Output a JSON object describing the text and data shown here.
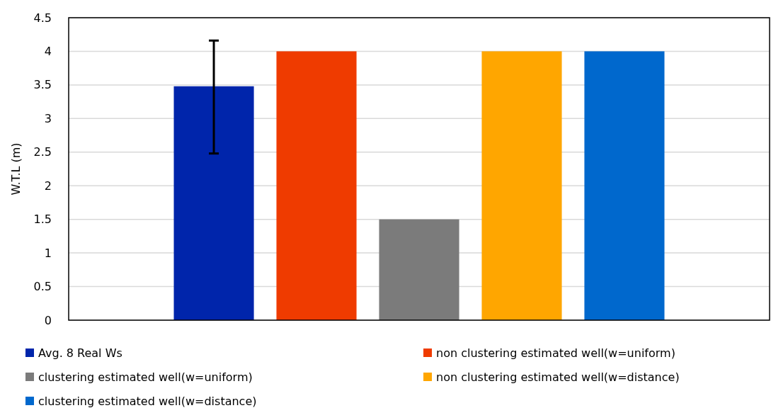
{
  "chart_data": {
    "type": "bar",
    "ylabel": "W.T.L (m)",
    "categories": [
      null
    ],
    "series": [
      {
        "name": "Avg. 8 Real Ws",
        "color": "#0025ab",
        "values": [
          3.48
        ],
        "errors": [
          [
            2.48,
            4.16
          ]
        ]
      },
      {
        "name": "non clustering estimated well(w=uniform)",
        "color": "#ef3b00",
        "values": [
          4
        ]
      },
      {
        "name": "clustering estimated well(w=uniform)",
        "color": "#7b7b7b",
        "values": [
          1.5
        ]
      },
      {
        "name": "non clustering estimated well(w=distance)",
        "color": "#ffa600",
        "values": [
          4
        ]
      },
      {
        "name": "clustering estimated well(w=distance)",
        "color": "#0068cd",
        "values": [
          4
        ]
      }
    ],
    "ylim": [
      0,
      4.5
    ],
    "yticks": [
      0,
      0.5,
      1,
      1.5,
      2,
      2.5,
      3,
      3.5,
      4,
      4.5
    ],
    "grid": "y",
    "legend": "bottom"
  }
}
